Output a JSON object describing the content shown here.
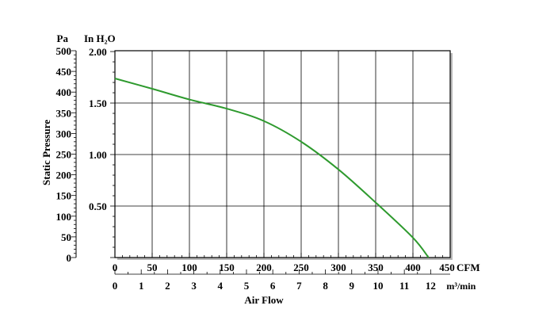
{
  "chart_data": {
    "type": "line",
    "xlabel": "Air Flow",
    "ylabel": "Static Pressure",
    "x_unit_primary": "CFM",
    "x_unit_secondary": "m³/min",
    "y_unit_primary": "Pa",
    "y_unit_secondary": "In H₂O",
    "xlim": [
      0,
      450
    ],
    "ylim": [
      0,
      500
    ],
    "x_ticks": [
      "0",
      "50",
      "100",
      "150",
      "200",
      "250",
      "300",
      "350",
      "400",
      "450"
    ],
    "x2_ticks": [
      "0",
      "1",
      "2",
      "3",
      "4",
      "5",
      "6",
      "7",
      "8",
      "9",
      "10",
      "11",
      "12"
    ],
    "y_ticks": [
      "0",
      "50",
      "100",
      "150",
      "200",
      "250",
      "300",
      "350",
      "400",
      "450",
      "500"
    ],
    "y2_ticks": [
      {
        "label": "0.50",
        "value": 124.5
      },
      {
        "label": "1.00",
        "value": 249
      },
      {
        "label": "1.50",
        "value": 373.5
      },
      {
        "label": "2.00",
        "value": 498
      }
    ],
    "grid": true,
    "line_color": "#2e9a2e",
    "series": [
      {
        "x": [
          0,
          50,
          100,
          150,
          200,
          250,
          300,
          350,
          400,
          421
        ],
        "y": [
          433,
          408,
          382,
          360,
          330,
          280,
          213,
          133,
          48,
          0
        ]
      }
    ]
  }
}
